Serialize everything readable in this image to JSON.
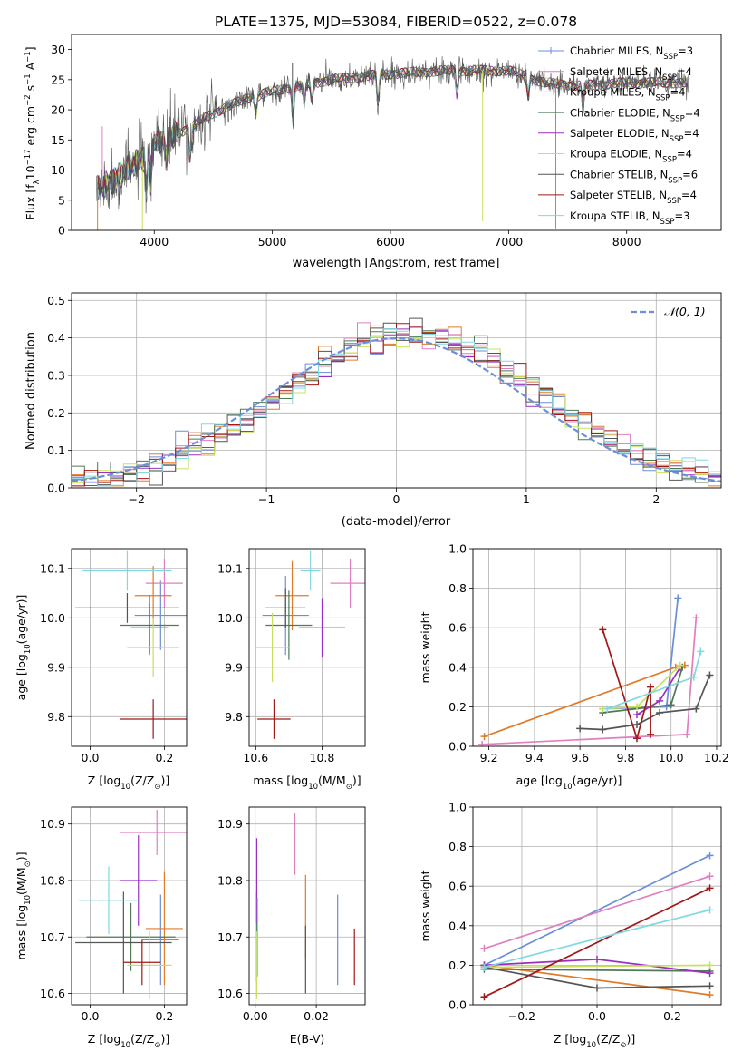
{
  "figure_title": "PLATE=1375, MJD=53084, FIBERID=0522, z=0.078",
  "colors": {
    "chabrier_miles": "#6a8fd8",
    "salpeter_miles": "#e07fc0",
    "kroupa_miles": "#e07b2a",
    "chabrier_elodie": "#4f7a55",
    "salpeter_elodie": "#9b30c0",
    "kroupa_elodie": "#c8e060",
    "chabrier_stelib": "#555555",
    "salpeter_stelib": "#a01818",
    "kroupa_stelib": "#80d8e0",
    "normal": "#6a8fd8"
  },
  "legend_models": [
    {
      "key": "chabrier_miles",
      "pre": "Chabrier MILES, N",
      "sub": "SSP",
      "post": "=3"
    },
    {
      "key": "salpeter_miles",
      "pre": "Salpeter MILES, N",
      "sub": "SSP",
      "post": "=4"
    },
    {
      "key": "kroupa_miles",
      "pre": "Kroupa MILES, N",
      "sub": "SSP",
      "post": "=4"
    },
    {
      "key": "chabrier_elodie",
      "pre": "Chabrier ELODIE, N",
      "sub": "SSP",
      "post": "=4"
    },
    {
      "key": "salpeter_elodie",
      "pre": "Salpeter ELODIE, N",
      "sub": "SSP",
      "post": "=4"
    },
    {
      "key": "kroupa_elodie",
      "pre": "Kroupa ELODIE, N",
      "sub": "SSP",
      "post": "=4"
    },
    {
      "key": "chabrier_stelib",
      "pre": "Chabrier STELIB, N",
      "sub": "SSP",
      "post": "=6"
    },
    {
      "key": "salpeter_stelib",
      "pre": "Salpeter STELIB, N",
      "sub": "SSP",
      "post": "=4"
    },
    {
      "key": "kroupa_stelib",
      "pre": "Kroupa STELIB, N",
      "sub": "SSP",
      "post": "=3"
    }
  ],
  "chart_data": [
    {
      "id": "spectrum",
      "type": "line",
      "xlabel": "wavelength [Angstrom, rest frame]",
      "ylabel_parts": [
        "Flux [f",
        "λ",
        "10",
        "−17",
        " erg cm",
        "−2",
        " s",
        "−1",
        " A",
        "−1",
        "]"
      ],
      "xlim": [
        3300,
        8800
      ],
      "ylim": [
        0,
        32.5
      ],
      "xticks": [
        4000,
        5000,
        6000,
        7000,
        8000
      ],
      "yticks": [
        0,
        5,
        10,
        15,
        20,
        25,
        30
      ],
      "continuum": [
        [
          3500,
          6.5
        ],
        [
          3700,
          9
        ],
        [
          3900,
          12
        ],
        [
          4000,
          14.5
        ],
        [
          4300,
          17
        ],
        [
          4500,
          19.5
        ],
        [
          4800,
          22
        ],
        [
          5100,
          23.5
        ],
        [
          5500,
          25
        ],
        [
          6000,
          26
        ],
        [
          6500,
          26.5
        ],
        [
          7000,
          26.5
        ],
        [
          7300,
          24.5
        ],
        [
          7600,
          24
        ],
        [
          8000,
          24.5
        ],
        [
          8500,
          24.5
        ]
      ],
      "absorption": [
        [
          3934,
          7
        ],
        [
          3968,
          6
        ],
        [
          4102,
          4
        ],
        [
          4304,
          5
        ],
        [
          4861,
          3
        ],
        [
          5175,
          6
        ],
        [
          5270,
          3
        ],
        [
          5335,
          3
        ],
        [
          5893,
          5
        ],
        [
          6563,
          4
        ],
        [
          7165,
          3
        ],
        [
          7630,
          4
        ]
      ],
      "spikes": [
        [
          3560,
          10,
          "salpeter_miles"
        ],
        [
          3520,
          -11,
          "kroupa_miles"
        ],
        [
          3900,
          -12,
          "kroupa_elodie"
        ],
        [
          5170,
          9,
          "chabrier_stelib"
        ],
        [
          6780,
          -25,
          "kroupa_elodie"
        ],
        [
          7400,
          -24,
          "kroupa_miles"
        ]
      ]
    },
    {
      "id": "residual-histogram",
      "type": "histogram",
      "xlabel": "(data-model)/error",
      "ylabel": "Normed distribution",
      "legend": "𝒩(0, 1)",
      "xlim": [
        -2.5,
        2.5
      ],
      "ylim": [
        0,
        0.52
      ],
      "xticks": [
        -2,
        -1,
        0,
        1,
        2
      ],
      "yticks": [
        0,
        0.1,
        0.2,
        0.3,
        0.4,
        0.5
      ],
      "bin_width": 0.1,
      "normal": {
        "mean": 0,
        "sigma": 1
      }
    },
    {
      "id": "age-vs-z",
      "type": "errorbar",
      "xlabel_parts": [
        "Z [log",
        "10",
        "(Z/Z",
        "⊙",
        ")]"
      ],
      "ylabel_parts": [
        "age  [log",
        "10",
        "(age/yr)]"
      ],
      "xlim": [
        -0.05,
        0.26
      ],
      "ylim": [
        9.74,
        10.14
      ],
      "xticks": [
        0.0,
        0.2
      ],
      "yticks": [
        9.8,
        9.9,
        10.0,
        10.1
      ],
      "points": [
        {
          "model": "chabrier_miles",
          "x": 0.19,
          "xerr": 0.07,
          "y": 10.005,
          "yerr": 0.07
        },
        {
          "model": "salpeter_miles",
          "x": 0.2,
          "xerr": 0.05,
          "y": 10.07,
          "yerr": 0.05
        },
        {
          "model": "kroupa_miles",
          "x": 0.17,
          "xerr": 0.05,
          "y": 10.045,
          "yerr": 0.06
        },
        {
          "model": "chabrier_elodie",
          "x": 0.16,
          "xerr": 0.08,
          "y": 9.985,
          "yerr": 0.06
        },
        {
          "model": "salpeter_elodie",
          "x": 0.16,
          "xerr": 0.05,
          "y": 9.98,
          "yerr": 0.05
        },
        {
          "model": "kroupa_elodie",
          "x": 0.17,
          "xerr": 0.07,
          "y": 9.94,
          "yerr": 0.06
        },
        {
          "model": "chabrier_stelib",
          "x": 0.1,
          "xerr": 0.14,
          "y": 10.02,
          "yerr": 0.03
        },
        {
          "model": "salpeter_stelib",
          "x": 0.17,
          "xerr": 0.09,
          "y": 9.795,
          "yerr": 0.04
        },
        {
          "model": "kroupa_stelib",
          "x": 0.1,
          "xerr": 0.12,
          "y": 10.095,
          "yerr": 0.04
        }
      ]
    },
    {
      "id": "age-vs-mass",
      "type": "errorbar",
      "xlabel_parts": [
        "mass [log",
        "10",
        "(M/M",
        "⊙",
        ")]"
      ],
      "xlim": [
        10.58,
        10.93
      ],
      "ylim": [
        9.74,
        10.14
      ],
      "xticks": [
        10.6,
        10.8
      ],
      "yticks": [
        9.8,
        9.9,
        10.0,
        10.1
      ],
      "points": [
        {
          "model": "chabrier_miles",
          "x": 10.69,
          "xerr": 0.07,
          "y": 10.005,
          "yerr": 0.08
        },
        {
          "model": "salpeter_miles",
          "x": 10.885,
          "xerr": 0.06,
          "y": 10.07,
          "yerr": 0.05
        },
        {
          "model": "kroupa_miles",
          "x": 10.71,
          "xerr": 0.05,
          "y": 10.045,
          "yerr": 0.07
        },
        {
          "model": "chabrier_elodie",
          "x": 10.7,
          "xerr": 0.07,
          "y": 9.985,
          "yerr": 0.07
        },
        {
          "model": "salpeter_elodie",
          "x": 10.8,
          "xerr": 0.07,
          "y": 9.98,
          "yerr": 0.06
        },
        {
          "model": "kroupa_elodie",
          "x": 10.65,
          "xerr": 0.05,
          "y": 9.94,
          "yerr": 0.07
        },
        {
          "model": "chabrier_stelib",
          "x": 10.69,
          "xerr": 0.06,
          "y": 10.02,
          "yerr": 0.04
        },
        {
          "model": "salpeter_stelib",
          "x": 10.655,
          "xerr": 0.05,
          "y": 9.795,
          "yerr": 0.04
        },
        {
          "model": "kroupa_stelib",
          "x": 10.765,
          "xerr": 0.03,
          "y": 10.095,
          "yerr": 0.04
        }
      ]
    },
    {
      "id": "mass-weight-vs-age",
      "type": "line",
      "xlabel_parts": [
        "age  [log",
        "10",
        "(age/yr)]"
      ],
      "ylabel": "mass weight",
      "xlim": [
        9.13,
        10.22
      ],
      "ylim": [
        0,
        1
      ],
      "xticks": [
        9.2,
        9.4,
        9.6,
        9.8,
        10.0,
        10.2
      ],
      "yticks": [
        0.0,
        0.2,
        0.4,
        0.6,
        0.8,
        1.0
      ],
      "series": [
        {
          "model": "chabrier_miles",
          "x": [
            9.7,
            9.98,
            10.03
          ],
          "y": [
            0.19,
            0.2,
            0.75
          ]
        },
        {
          "model": "salpeter_miles",
          "x": [
            9.17,
            10.07,
            10.11
          ],
          "y": [
            0.01,
            0.06,
            0.65
          ]
        },
        {
          "model": "kroupa_miles",
          "x": [
            9.18,
            10.02,
            10.06
          ],
          "y": [
            0.05,
            0.4,
            0.41
          ]
        },
        {
          "model": "chabrier_elodie",
          "x": [
            9.7,
            10.0,
            10.05
          ],
          "y": [
            0.17,
            0.21,
            0.4
          ]
        },
        {
          "model": "salpeter_elodie",
          "x": [
            9.85,
            9.95,
            10.04
          ],
          "y": [
            0.16,
            0.23,
            0.4
          ]
        },
        {
          "model": "kroupa_elodie",
          "x": [
            9.7,
            9.85,
            10.04
          ],
          "y": [
            0.19,
            0.2,
            0.41
          ]
        },
        {
          "model": "chabrier_stelib",
          "x": [
            9.6,
            9.7,
            9.85,
            9.95,
            10.11,
            10.17
          ],
          "y": [
            0.09,
            0.085,
            0.11,
            0.17,
            0.19,
            0.36
          ]
        },
        {
          "model": "salpeter_stelib",
          "x": [
            9.7,
            9.85,
            9.91,
            9.91
          ],
          "y": [
            0.59,
            0.04,
            0.3,
            0.06
          ]
        },
        {
          "model": "kroupa_stelib",
          "x": [
            9.72,
            10.1,
            10.13
          ],
          "y": [
            0.19,
            0.35,
            0.48
          ]
        }
      ]
    },
    {
      "id": "mass-vs-z",
      "type": "errorbar",
      "xlabel_parts": [
        "Z [log",
        "10",
        "(Z/Z",
        "⊙",
        ")]"
      ],
      "ylabel_parts": [
        "mass [log",
        "10",
        "(M/M",
        "⊙",
        ")]"
      ],
      "xlim": [
        -0.05,
        0.26
      ],
      "ylim": [
        10.58,
        10.93
      ],
      "xticks": [
        0.0,
        0.2
      ],
      "yticks": [
        10.6,
        10.7,
        10.8,
        10.9
      ],
      "points": [
        {
          "model": "chabrier_miles",
          "x": 0.19,
          "xerr": 0.05,
          "y": 10.695,
          "yerr": 0.08
        },
        {
          "model": "salpeter_miles",
          "x": 0.18,
          "xerr": 0.1,
          "y": 10.885,
          "yerr": 0.04
        },
        {
          "model": "kroupa_miles",
          "x": 0.2,
          "xerr": 0.05,
          "y": 10.715,
          "yerr": 0.1
        },
        {
          "model": "chabrier_elodie",
          "x": 0.11,
          "xerr": 0.12,
          "y": 10.7,
          "yerr": 0.06
        },
        {
          "model": "salpeter_elodie",
          "x": 0.13,
          "xerr": 0.05,
          "y": 10.8,
          "yerr": 0.08
        },
        {
          "model": "kroupa_elodie",
          "x": 0.16,
          "xerr": 0.06,
          "y": 10.65,
          "yerr": 0.06
        },
        {
          "model": "chabrier_stelib",
          "x": 0.09,
          "xerr": 0.13,
          "y": 10.69,
          "yerr": 0.09
        },
        {
          "model": "salpeter_stelib",
          "x": 0.14,
          "xerr": 0.05,
          "y": 10.655,
          "yerr": 0.04
        },
        {
          "model": "kroupa_stelib",
          "x": 0.05,
          "xerr": 0.08,
          "y": 10.765,
          "yerr": 0.06
        }
      ]
    },
    {
      "id": "mass-vs-ebv",
      "type": "errorbar",
      "xlabel": "E(B-V)",
      "xlim": [
        -0.002,
        0.036
      ],
      "ylim": [
        10.58,
        10.93
      ],
      "xticks": [
        0.0,
        0.02
      ],
      "yticks": [
        10.6,
        10.7,
        10.8,
        10.9
      ],
      "points": [
        {
          "model": "chabrier_miles",
          "x": 0.027,
          "y": 10.695,
          "yerr": 0.08
        },
        {
          "model": "salpeter_miles",
          "x": 0.013,
          "y": 10.865,
          "yerr": 0.055
        },
        {
          "model": "kroupa_miles",
          "x": 0.0165,
          "y": 10.735,
          "yerr": 0.075
        },
        {
          "model": "chabrier_elodie",
          "x": 0.0005,
          "y": 10.7,
          "yerr": 0.08
        },
        {
          "model": "salpeter_elodie",
          "x": 0.0005,
          "y": 10.8,
          "yerr": 0.075
        },
        {
          "model": "kroupa_elodie",
          "x": 0.0005,
          "y": 10.65,
          "yerr": 0.06
        },
        {
          "model": "chabrier_stelib",
          "x": 0.0165,
          "y": 10.66,
          "yerr": 0.06
        },
        {
          "model": "salpeter_stelib",
          "x": 0.0325,
          "y": 10.665,
          "yerr": 0.05
        },
        {
          "model": "kroupa_stelib",
          "x": 0.0008,
          "y": 10.7,
          "yerr": 0.07
        }
      ]
    },
    {
      "id": "mass-weight-vs-z",
      "type": "line",
      "xlabel_parts": [
        "Z [log",
        "10",
        "(Z/Z",
        "⊙",
        ")]"
      ],
      "ylabel": "mass weight",
      "xlim": [
        -0.33,
        0.33
      ],
      "ylim": [
        0,
        1
      ],
      "xticks": [
        -0.2,
        0.0,
        0.2
      ],
      "yticks": [
        0.0,
        0.2,
        0.4,
        0.6,
        0.8,
        1.0
      ],
      "series": [
        {
          "model": "chabrier_miles",
          "x": [
            -0.3,
            0.3
          ],
          "y": [
            0.2,
            0.755
          ]
        },
        {
          "model": "salpeter_miles",
          "x": [
            -0.3,
            0.3
          ],
          "y": [
            0.285,
            0.65
          ]
        },
        {
          "model": "kroupa_miles",
          "x": [
            -0.3,
            0.3
          ],
          "y": [
            0.2,
            0.05
          ]
        },
        {
          "model": "chabrier_elodie",
          "x": [
            -0.3,
            0.3
          ],
          "y": [
            0.18,
            0.17
          ]
        },
        {
          "model": "salpeter_elodie",
          "x": [
            -0.3,
            0.0,
            0.3
          ],
          "y": [
            0.2,
            0.23,
            0.16
          ]
        },
        {
          "model": "kroupa_elodie",
          "x": [
            -0.3,
            0.3
          ],
          "y": [
            0.19,
            0.2
          ]
        },
        {
          "model": "chabrier_stelib",
          "x": [
            -0.3,
            0.0,
            0.3
          ],
          "y": [
            0.19,
            0.085,
            0.095
          ]
        },
        {
          "model": "salpeter_stelib",
          "x": [
            -0.3,
            0.3
          ],
          "y": [
            0.04,
            0.59
          ]
        },
        {
          "model": "kroupa_stelib",
          "x": [
            -0.3,
            0.3
          ],
          "y": [
            0.19,
            0.48
          ]
        }
      ]
    }
  ]
}
